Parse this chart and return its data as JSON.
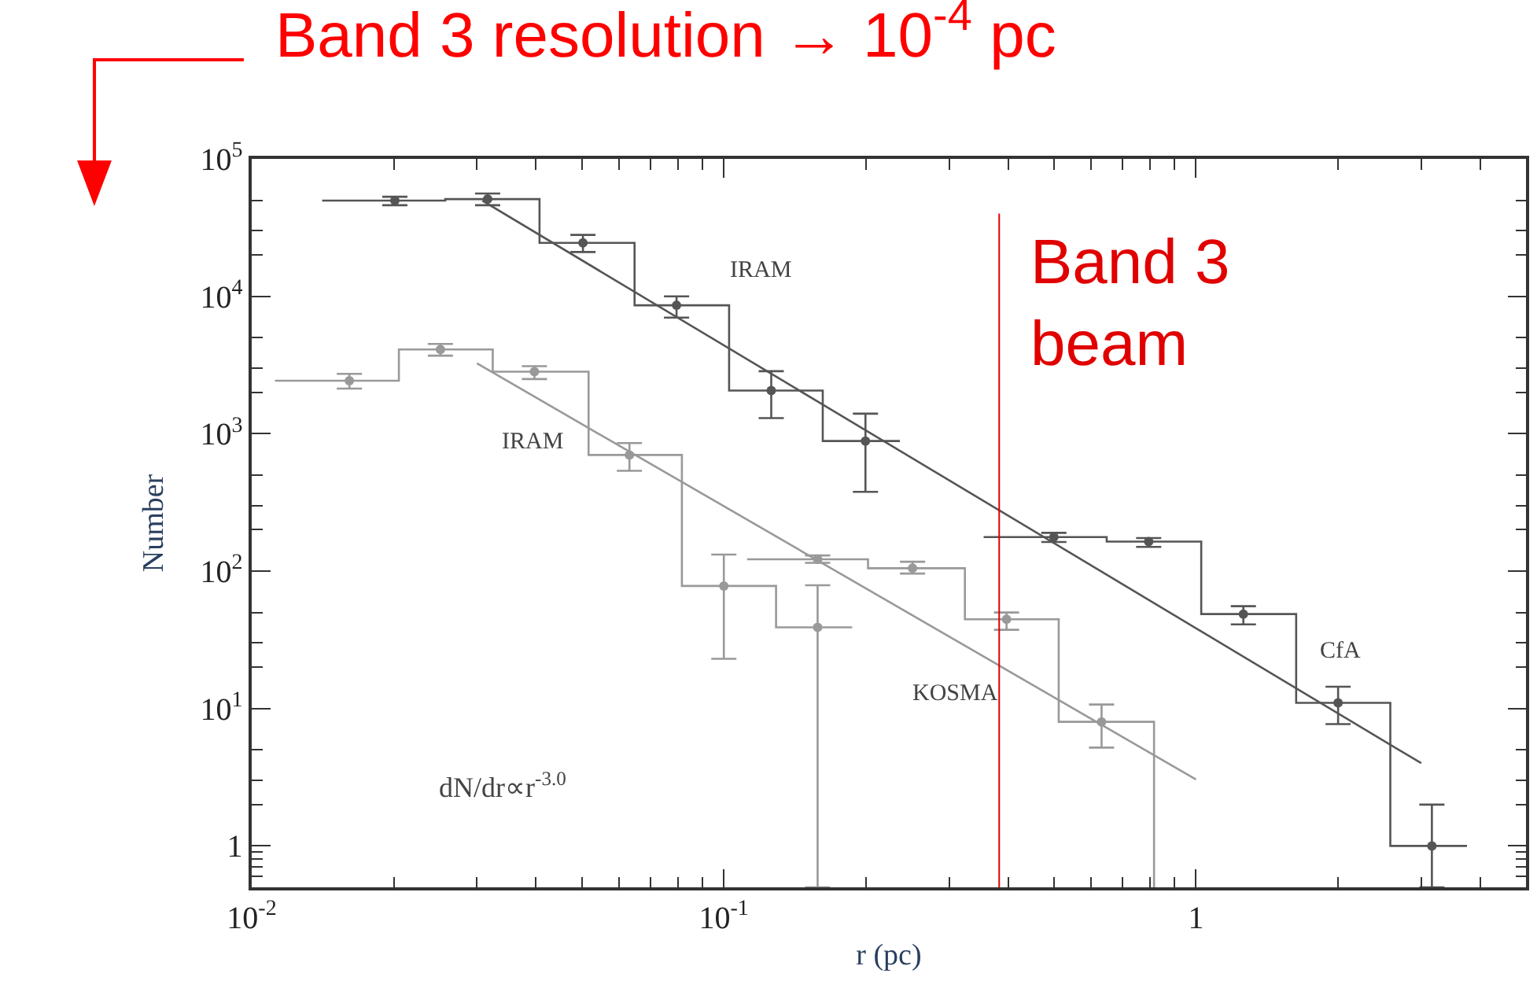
{
  "chart_data": {
    "type": "step",
    "title": "Band 3 resolution → 10$^{-4}$ pc",
    "xlabel": "r (pc)",
    "ylabel": "Number",
    "log": "xy",
    "xlim": [
      0.01,
      5
    ],
    "ylim": [
      0.5,
      100000
    ],
    "xticks": [
      {
        "value": 0.01,
        "label": "10$^{-2}$"
      },
      {
        "value": 0.02,
        "label": null
      },
      {
        "value": 0.03,
        "label": null
      },
      {
        "value": 0.04,
        "label": null
      },
      {
        "value": 0.05,
        "label": null
      },
      {
        "value": 0.06,
        "label": null
      },
      {
        "value": 0.07,
        "label": null
      },
      {
        "value": 0.08,
        "label": null
      },
      {
        "value": 0.09,
        "label": null
      },
      {
        "value": 0.1,
        "label": "10$^{-1}$"
      },
      {
        "value": 0.2,
        "label": null
      },
      {
        "value": 0.3,
        "label": null
      },
      {
        "value": 0.4,
        "label": null
      },
      {
        "value": 0.5,
        "label": null
      },
      {
        "value": 0.6,
        "label": null
      },
      {
        "value": 0.7,
        "label": null
      },
      {
        "value": 0.8,
        "label": null
      },
      {
        "value": 0.9,
        "label": null
      },
      1,
      {
        "value": 2,
        "label": null
      },
      {
        "value": 3,
        "label": null
      },
      {
        "value": 4,
        "label": null
      }
    ],
    "yticks": [
      {
        "value": 0.6,
        "label": null
      },
      {
        "value": 0.7,
        "label": null
      },
      {
        "value": 0.8,
        "label": null
      },
      {
        "value": 0.9,
        "label": null
      },
      1,
      {
        "value": 2,
        "label": null
      },
      {
        "value": 3,
        "label": null
      },
      {
        "value": 5,
        "label": null
      },
      {
        "value": 10,
        "label": "10$^{1}$"
      },
      {
        "value": 20,
        "label": null
      },
      {
        "value": 30,
        "label": null
      },
      {
        "value": 50,
        "label": null
      },
      {
        "value": 100,
        "label": "10$^{2}$"
      },
      {
        "value": 200,
        "label": null
      },
      {
        "value": 300,
        "label": null
      },
      {
        "value": 500,
        "label": null
      },
      {
        "value": 1000,
        "label": "10$^{3}$"
      },
      {
        "value": 2000,
        "label": null
      },
      {
        "value": 3000,
        "label": null
      },
      {
        "value": 5000,
        "label": null
      },
      {
        "value": 10000,
        "label": "10$^{4}$"
      },
      {
        "value": 20000,
        "label": null
      },
      {
        "value": 30000,
        "label": null
      },
      {
        "value": 50000,
        "label": null
      },
      {
        "value": 100000,
        "label": "10$^{5}$"
      }
    ],
    "series": [
      {
        "color": "#555555",
        "x": [
          0.0141,
          0.0257,
          0.0407,
          0.0647,
          0.1026,
          0.162,
          0.236
        ],
        "values": [
          49700,
          51000,
          24500,
          8600,
          2060,
          885,
          885
        ]
      },
      {
        "type": "scatter",
        "color": "#555555",
        "x": [
          0.0201,
          0.0316,
          0.0503,
          0.0794,
          0.126,
          0.1995
        ],
        "values": [
          49700,
          51000,
          24500,
          8600,
          2060,
          885
        ],
        "errors": [
          [
            46000,
            53000
          ],
          [
            46000,
            56000
          ],
          [
            21000,
            28000
          ],
          [
            7000,
            10000
          ],
          [
            1300,
            2850
          ],
          [
            378,
            1400
          ]
        ]
      },
      {
        "color": "#999999",
        "x": [
          0.0112,
          0.0205,
          0.0324,
          0.0517,
          0.0815,
          0.129,
          0.187
        ],
        "values": [
          2430,
          4100,
          2830,
          700,
          78,
          39,
          39
        ]
      },
      {
        "type": "scatter",
        "color": "#999999",
        "x": [
          0.0161,
          0.0251,
          0.0397,
          0.0631,
          0.1,
          0.158
        ],
        "values": [
          2430,
          4100,
          2830,
          700,
          78,
          39
        ],
        "errors": [
          [
            2130,
            2730
          ],
          [
            3700,
            4500
          ],
          [
            2500,
            3100
          ],
          [
            537,
            855
          ],
          [
            23,
            132
          ],
          [
            0.5,
            79
          ]
        ]
      },
      {
        "color": "#999999",
        "x": [
          0.112,
          0.202,
          0.324,
          0.512,
          0.815
        ],
        "values": [
          122,
          105,
          44.6,
          8,
          0.5
        ]
      },
      {
        "type": "scatter",
        "color": "#999999",
        "x": [
          0.158,
          0.251,
          0.397,
          0.631
        ],
        "values": [
          122,
          105,
          44.6,
          8
        ],
        "errors": [
          [
            115,
            130
          ],
          [
            96,
            117
          ],
          [
            37.4,
            50
          ],
          [
            5.2,
            10.7
          ]
        ]
      },
      {
        "color": "#555555",
        "x": [
          0.355,
          0.647,
          1.026,
          1.63,
          2.58,
          3.75
        ],
        "values": [
          177,
          164,
          48.7,
          11,
          1.0,
          1.0
        ]
      },
      {
        "type": "scatter",
        "color": "#555555",
        "x": [
          0.5,
          0.794,
          1.26,
          2.0,
          3.16
        ],
        "values": [
          177,
          164,
          48.7,
          11,
          1.0
        ],
        "errors": [
          [
            163,
            190
          ],
          [
            150,
            174
          ],
          [
            41,
            55.6
          ],
          [
            7.7,
            14.4
          ],
          [
            0.5,
            2.0
          ]
        ]
      },
      {
        "type": "line",
        "color": "#555555",
        "x": [
          0.0308,
          3.0
        ],
        "values": [
          49700,
          4.0
        ]
      },
      {
        "type": "line",
        "color": "#999999",
        "x": [
          0.03,
          1.0
        ],
        "values": [
          3250,
          3.05
        ]
      }
    ],
    "ref_lines": [
      {
        "axis": "x",
        "value": 0.383,
        "label": "Band 3\nbeam",
        "color": "#e00000"
      }
    ],
    "annotations": [
      "IRAM",
      "IRAM",
      "KOSMA",
      "CfA",
      "dN/dr∝r$^{-3.0}$"
    ]
  }
}
